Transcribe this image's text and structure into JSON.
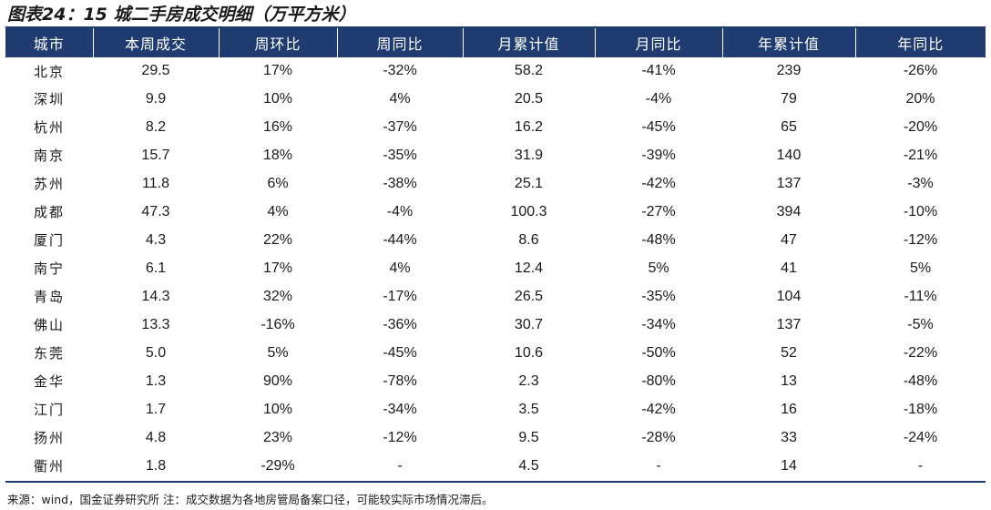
{
  "title": "图表24：15 城二手房成交明细（万平方米）",
  "columns": [
    "城市",
    "本周成交",
    "周环比",
    "周同比",
    "月累计值",
    "月同比",
    "年累计值",
    "年同比"
  ],
  "rows": [
    [
      "北京",
      "29.5",
      "17%",
      "-32%",
      "58.2",
      "-41%",
      "239",
      "-26%"
    ],
    [
      "深圳",
      "9.9",
      "10%",
      "4%",
      "20.5",
      "-4%",
      "79",
      "20%"
    ],
    [
      "杭州",
      "8.2",
      "16%",
      "-37%",
      "16.2",
      "-45%",
      "65",
      "-20%"
    ],
    [
      "南京",
      "15.7",
      "18%",
      "-35%",
      "31.9",
      "-39%",
      "140",
      "-21%"
    ],
    [
      "苏州",
      "11.8",
      "6%",
      "-38%",
      "25.1",
      "-42%",
      "137",
      "-3%"
    ],
    [
      "成都",
      "47.3",
      "4%",
      "-4%",
      "100.3",
      "-27%",
      "394",
      "-10%"
    ],
    [
      "厦门",
      "4.3",
      "22%",
      "-44%",
      "8.6",
      "-48%",
      "47",
      "-12%"
    ],
    [
      "南宁",
      "6.1",
      "17%",
      "4%",
      "12.4",
      "5%",
      "41",
      "5%"
    ],
    [
      "青岛",
      "14.3",
      "32%",
      "-17%",
      "26.5",
      "-35%",
      "104",
      "-11%"
    ],
    [
      "佛山",
      "13.3",
      "-16%",
      "-36%",
      "30.7",
      "-34%",
      "137",
      "-5%"
    ],
    [
      "东莞",
      "5.0",
      "5%",
      "-45%",
      "10.6",
      "-50%",
      "52",
      "-22%"
    ],
    [
      "金华",
      "1.3",
      "90%",
      "-78%",
      "2.3",
      "-80%",
      "13",
      "-48%"
    ],
    [
      "江门",
      "1.7",
      "10%",
      "-34%",
      "3.5",
      "-42%",
      "16",
      "-18%"
    ],
    [
      "扬州",
      "4.8",
      "23%",
      "-12%",
      "9.5",
      "-28%",
      "33",
      "-24%"
    ],
    [
      "衢州",
      "1.8",
      "-29%",
      "-",
      "4.5",
      "-",
      "14",
      "-"
    ]
  ],
  "note": "来源：wind，国金证券研究所 注：成交数据为各地房管局备案口径，可能较实际市场情况滞后。"
}
